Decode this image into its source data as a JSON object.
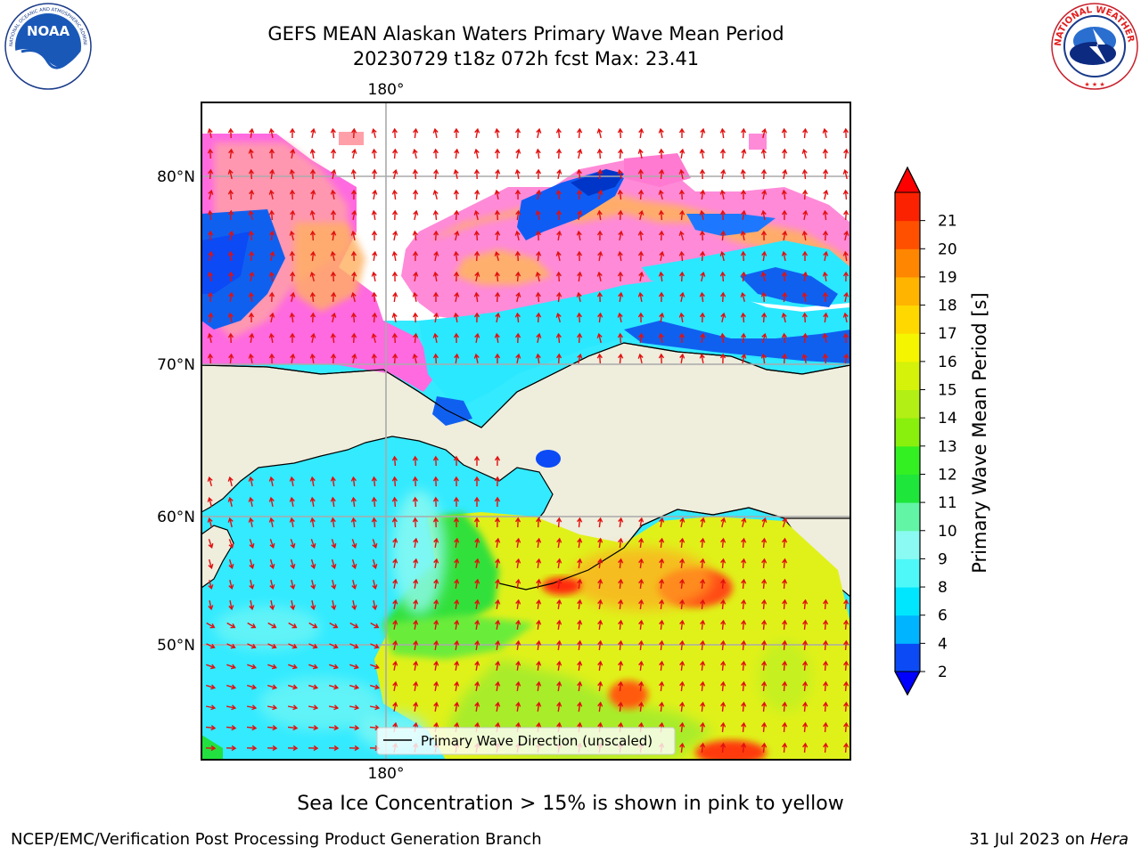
{
  "header": {
    "title": "GEFS MEAN Alaskan Waters Primary Wave Mean Period",
    "subtitle": "20230729 t18z 072h fcst   Max: 23.41"
  },
  "logos": {
    "left": {
      "name": "noaa-logo",
      "text": "NOAA",
      "ring_text": "NATIONAL OCEANIC AND ATMOSPHERIC ADMINISTRATION · U.S. DEPARTMENT OF COMMERCE"
    },
    "right": {
      "name": "nws-logo",
      "ring_text": "NATIONAL WEATHER SERVICE"
    }
  },
  "map": {
    "lon_labels": {
      "top": "180°",
      "bottom": "180°"
    },
    "lat_labels": [
      "80°N",
      "70°N",
      "60°N",
      "50°N"
    ],
    "legend_label": "Primary Wave Direction (unscaled)",
    "colors": {
      "land": "#efeddc",
      "grid": "#aaaaaa",
      "arrow": "#e21010"
    }
  },
  "colorbar": {
    "label": "Primary Wave Mean Period [s]",
    "ticks": [
      "2",
      "4",
      "6",
      "8",
      "9",
      "10",
      "11",
      "12",
      "13",
      "14",
      "15",
      "16",
      "17",
      "18",
      "19",
      "20",
      "21"
    ],
    "bands": [
      "#0b4af5",
      "#00b4ff",
      "#00e6ff",
      "#4ff8f8",
      "#8afaf2",
      "#62f5a6",
      "#1ee63a",
      "#33f023",
      "#88f00c",
      "#b2ef14",
      "#d4f20a",
      "#f5f500",
      "#ffd800",
      "#ffb400",
      "#ff8600",
      "#ff5000",
      "#fa2200"
    ],
    "under_color": "#0000ff",
    "over_color": "#ff0000"
  },
  "footer": {
    "note": "Sea Ice Concentration > 15% is shown in pink to yellow",
    "credit_left": "NCEP/EMC/Verification Post Processing Product Generation Branch",
    "date": "31 Jul 2023 on ",
    "machine": "Hera"
  }
}
